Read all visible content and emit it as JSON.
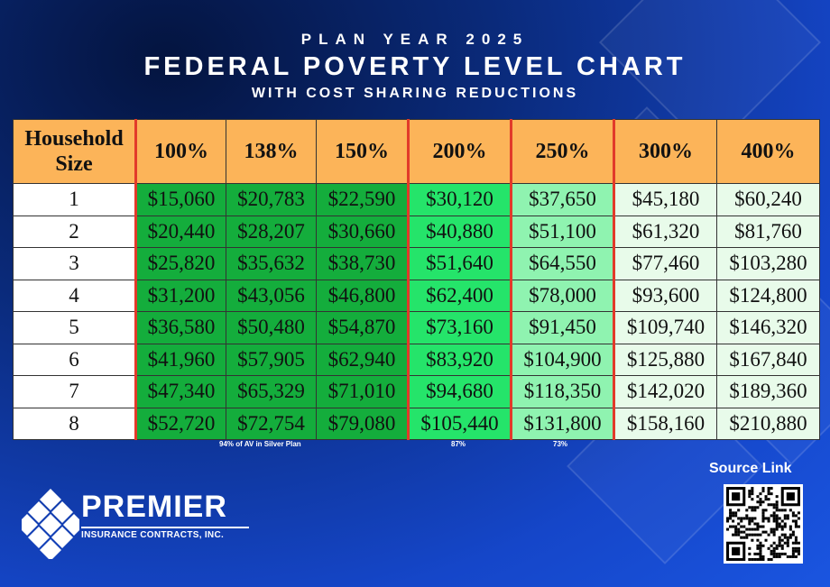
{
  "header": {
    "plan_year": "PLAN YEAR 2025",
    "title": "FEDERAL POVERTY LEVEL CHART",
    "subtitle": "WITH COST SHARING REDUCTIONS"
  },
  "table": {
    "size_header_line1": "Household",
    "size_header_line2": "Size",
    "columns": [
      "100%",
      "138%",
      "150%",
      "200%",
      "250%",
      "300%",
      "400%"
    ],
    "rows": [
      {
        "size": "1",
        "values": [
          "$15,060",
          "$20,783",
          "$22,590",
          "$30,120",
          "$37,650",
          "$45,180",
          "$60,240"
        ]
      },
      {
        "size": "2",
        "values": [
          "$20,440",
          "$28,207",
          "$30,660",
          "$40,880",
          "$51,100",
          "$61,320",
          "$81,760"
        ]
      },
      {
        "size": "3",
        "values": [
          "$25,820",
          "$35,632",
          "$38,730",
          "$51,640",
          "$64,550",
          "$77,460",
          "$103,280"
        ]
      },
      {
        "size": "4",
        "values": [
          "$31,200",
          "$43,056",
          "$46,800",
          "$62,400",
          "$78,000",
          "$93,600",
          "$124,800"
        ]
      },
      {
        "size": "5",
        "values": [
          "$36,580",
          "$50,480",
          "$54,870",
          "$73,160",
          "$91,450",
          "$109,740",
          "$146,320"
        ]
      },
      {
        "size": "6",
        "values": [
          "$41,960",
          "$57,905",
          "$62,940",
          "$83,920",
          "$104,900",
          "$125,880",
          "$167,840"
        ]
      },
      {
        "size": "7",
        "values": [
          "$47,340",
          "$65,329",
          "$71,010",
          "$94,680",
          "$118,350",
          "$142,020",
          "$189,360"
        ]
      },
      {
        "size": "8",
        "values": [
          "$52,720",
          "$72,754",
          "$79,080",
          "$105,440",
          "$131,800",
          "$158,160",
          "$210,880"
        ]
      }
    ]
  },
  "notes": {
    "silver_94": "94% of AV in Silver Plan",
    "av_87": "87%",
    "av_73": "73%"
  },
  "logo": {
    "name": "PREMIER",
    "tagline": "INSURANCE CONTRACTS, INC."
  },
  "source_link": "Source Link",
  "colors": {
    "header_orange": "#fcb459",
    "tier1_green": "#14ad3c",
    "tier2_green": "#25e46a",
    "tier3_green": "#8ff3b0",
    "tier4_green": "#e8fbea",
    "divider_red": "#e23a2a"
  }
}
